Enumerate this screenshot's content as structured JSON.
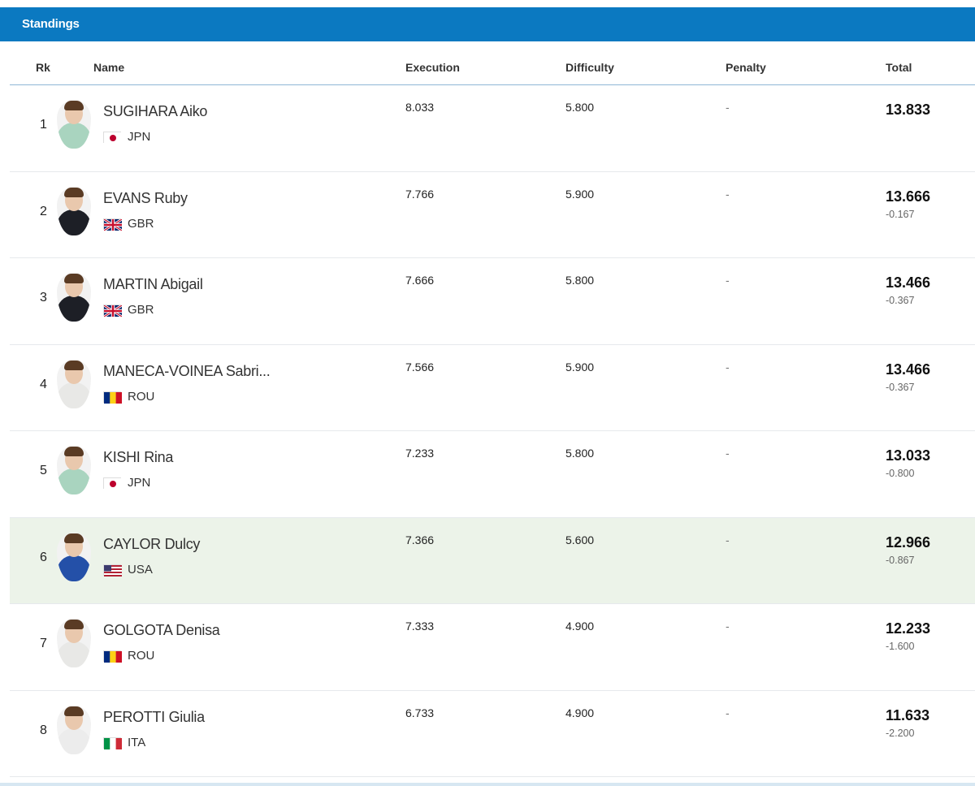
{
  "header": {
    "title": "Standings"
  },
  "columns": {
    "rank": "Rk",
    "name": "Name",
    "execution": "Execution",
    "difficulty": "Difficulty",
    "penalty": "Penalty",
    "total": "Total"
  },
  "colors": {
    "header_bg": "#0b79c1",
    "highlight_row": "#ecf3e9"
  },
  "rows": [
    {
      "rank": "1",
      "name": "SUGIHARA Aiko",
      "country": "JPN",
      "flag_icon": "jpn-flag-icon",
      "execution": "8.033",
      "difficulty": "5.800",
      "penalty": "-",
      "total": "13.833",
      "gap": "",
      "kit": "#a9d4bf"
    },
    {
      "rank": "2",
      "name": "EVANS Ruby",
      "country": "GBR",
      "flag_icon": "gbr-flag-icon",
      "execution": "7.766",
      "difficulty": "5.900",
      "penalty": "-",
      "total": "13.666",
      "gap": "-0.167",
      "kit": "#1d1f26"
    },
    {
      "rank": "3",
      "name": "MARTIN Abigail",
      "country": "GBR",
      "flag_icon": "gbr-flag-icon",
      "execution": "7.666",
      "difficulty": "5.800",
      "penalty": "-",
      "total": "13.466",
      "gap": "-0.367",
      "kit": "#1d1f26"
    },
    {
      "rank": "4",
      "name": "MANECA-VOINEA Sabri...",
      "country": "ROU",
      "flag_icon": "rou-flag-icon",
      "execution": "7.566",
      "difficulty": "5.900",
      "penalty": "-",
      "total": "13.466",
      "gap": "-0.367",
      "kit": "#e8e8e6"
    },
    {
      "rank": "5",
      "name": "KISHI Rina",
      "country": "JPN",
      "flag_icon": "jpn-flag-icon",
      "execution": "7.233",
      "difficulty": "5.800",
      "penalty": "-",
      "total": "13.033",
      "gap": "-0.800",
      "kit": "#a9d4bf"
    },
    {
      "rank": "6",
      "name": "CAYLOR Dulcy",
      "country": "USA",
      "flag_icon": "usa-flag-icon",
      "execution": "7.366",
      "difficulty": "5.600",
      "penalty": "-",
      "total": "12.966",
      "gap": "-0.867",
      "kit": "#2450a8",
      "highlight": true
    },
    {
      "rank": "7",
      "name": "GOLGOTA Denisa",
      "country": "ROU",
      "flag_icon": "rou-flag-icon",
      "execution": "7.333",
      "difficulty": "4.900",
      "penalty": "-",
      "total": "12.233",
      "gap": "-1.600",
      "kit": "#e8e8e6"
    },
    {
      "rank": "8",
      "name": "PEROTTI Giulia",
      "country": "ITA",
      "flag_icon": "ita-flag-icon",
      "execution": "6.733",
      "difficulty": "4.900",
      "penalty": "-",
      "total": "11.633",
      "gap": "-2.200",
      "kit": "#ececec"
    }
  ]
}
